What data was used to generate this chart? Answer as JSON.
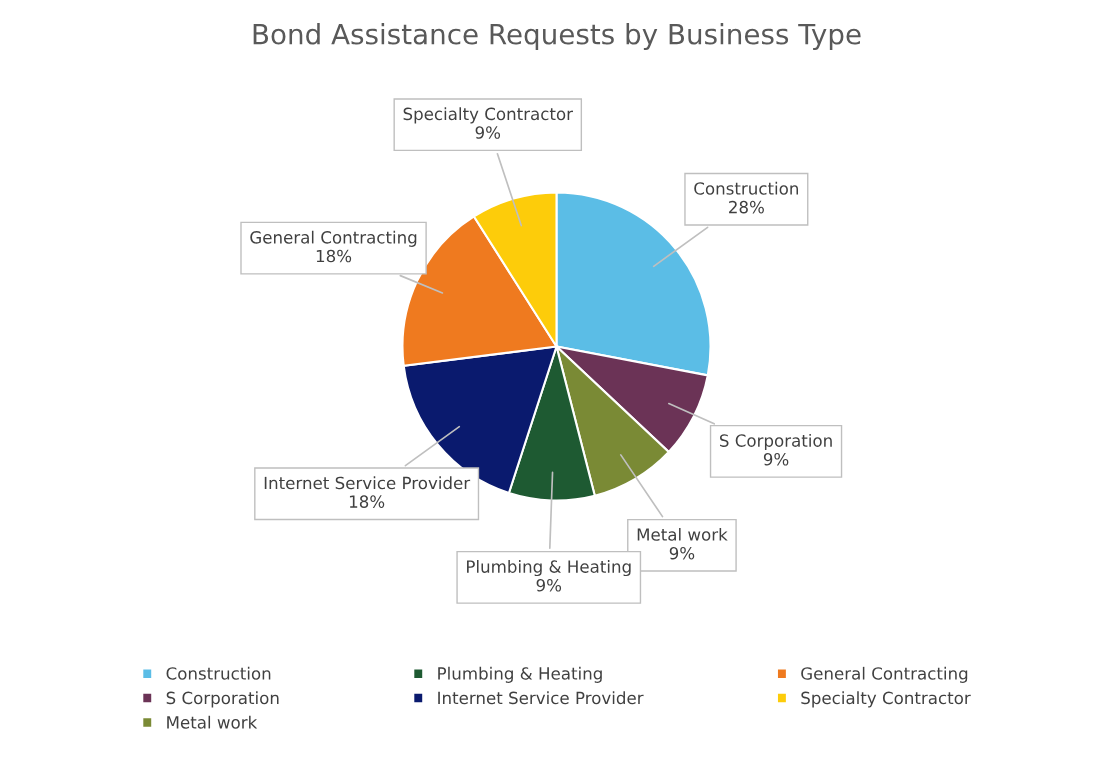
{
  "chart_data": {
    "type": "pie",
    "title": "Bond Assistance Requests by Business Type",
    "categories": [
      "Construction",
      "S Corporation",
      "Metal work",
      "Plumbing & Heating",
      "Internet Service Provider",
      "General Contracting",
      "Specialty Contractor"
    ],
    "values": [
      28,
      9,
      9,
      9,
      18,
      18,
      9
    ],
    "value_labels": [
      "28%",
      "9%",
      "9%",
      "9%",
      "18%",
      "18%",
      "9%"
    ],
    "colors": [
      "#5bbde6",
      "#6b3356",
      "#7a8a35",
      "#1e5a32",
      "#0a1a6e",
      "#ef7a1f",
      "#fdcc0a"
    ],
    "legend": "bottom"
  }
}
